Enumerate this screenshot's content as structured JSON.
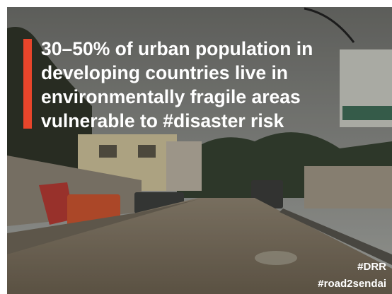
{
  "headline": {
    "lines": [
      "30–50% of urban population in",
      "developing countries live in",
      "environmentally fragile areas",
      "vulnerable to #disaster risk"
    ]
  },
  "hashtags": [
    "#DRR",
    "#road2sendai"
  ]
}
